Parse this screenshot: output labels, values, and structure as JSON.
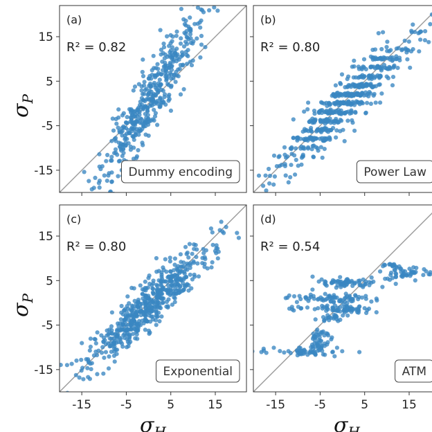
{
  "chart_data": [
    {
      "panel": "(a)",
      "type": "scatter",
      "xlabel": "",
      "ylabel": "σP",
      "annotation": "R² = 0.82",
      "legend": "Dummy encoding",
      "legend_placement": "bottom-right",
      "xlim": [
        -20,
        22
      ],
      "ylim": [
        -20,
        22
      ],
      "xticks": [
        "-15",
        "-5",
        "5",
        "15"
      ],
      "yticks": [
        "15",
        "5",
        "-5",
        "-15"
      ],
      "reference_line": "y = x",
      "color": "#3a87c2",
      "generator": {
        "seed": 11,
        "n": 460,
        "x_mean": 0.5,
        "x_sd": 5.6,
        "slope": 1.55,
        "intercept": 0.5,
        "noise": 3.8
      }
    },
    {
      "panel": "(b)",
      "type": "scatter",
      "xlabel": "",
      "ylabel": "",
      "annotation": "R² = 0.80",
      "legend": "Power Law",
      "legend_placement": "bottom-right",
      "xlim": [
        -20,
        22
      ],
      "ylim": [
        -20,
        22
      ],
      "xticks": [
        "-15",
        "-5",
        "5",
        "15"
      ],
      "yticks": [
        "15",
        "5",
        "-5",
        "-15"
      ],
      "reference_line": "y = x",
      "color": "#3a87c2",
      "generator": {
        "seed": 23,
        "n": 560,
        "x_mean": 0.0,
        "x_sd": 7.2,
        "slope": 0.92,
        "intercept": -0.5,
        "noise": 2.6,
        "stripes": 2.0
      }
    },
    {
      "panel": "(c)",
      "type": "scatter",
      "xlabel": "σH",
      "ylabel": "σP",
      "annotation": "R² = 0.80",
      "legend": "Exponential",
      "legend_placement": "bottom-right",
      "xlim": [
        -20,
        22
      ],
      "ylim": [
        -20,
        22
      ],
      "xticks": [
        "-15",
        "-5",
        "5",
        "15"
      ],
      "yticks": [
        "15",
        "5",
        "-5",
        "-15"
      ],
      "reference_line": "y = x",
      "color": "#3a87c2",
      "generator": {
        "seed": 37,
        "n": 580,
        "x_mean": 0.0,
        "x_sd": 7.0,
        "slope": 0.9,
        "intercept": -0.5,
        "noise": 2.6,
        "stripes": 1.0
      }
    },
    {
      "panel": "(d)",
      "type": "scatter",
      "xlabel": "σH",
      "ylabel": "",
      "annotation": "R² = 0.54",
      "legend": "ATM",
      "legend_placement": "bottom-right",
      "xlim": [
        -20,
        22
      ],
      "ylim": [
        -20,
        22
      ],
      "xticks": [
        "-15",
        "-5",
        "5",
        "15"
      ],
      "yticks": [
        "15",
        "5",
        "-5",
        "-15"
      ],
      "reference_line": "y = x",
      "color": "#3a87c2",
      "clusters": [
        {
          "seed": 41,
          "n": 70,
          "x_center": 1.5,
          "x_sd": 3.2,
          "y": 4.5,
          "y_sd": 0.5
        },
        {
          "seed": 42,
          "n": 55,
          "x_center": -1.0,
          "x_sd": 3.6,
          "y": 1.0,
          "y_sd": 0.5
        },
        {
          "seed": 43,
          "n": 60,
          "x_center": 0.5,
          "x_sd": 3.2,
          "y": -1.5,
          "y_sd": 0.5
        },
        {
          "seed": 44,
          "n": 22,
          "x_center": -2.0,
          "x_sd": 2.2,
          "y": -3.5,
          "y_sd": 0.5
        },
        {
          "seed": 45,
          "n": 28,
          "x_center": -5.0,
          "x_sd": 1.2,
          "y": -7.5,
          "y_sd": 0.6
        },
        {
          "seed": 46,
          "n": 14,
          "x_center": -5.5,
          "x_sd": 1.0,
          "y": -9.5,
          "y_sd": 0.4
        },
        {
          "seed": 47,
          "n": 50,
          "x_center": -7.0,
          "x_sd": 3.4,
          "y": -11.0,
          "y_sd": 0.5
        },
        {
          "seed": 48,
          "n": 48,
          "x_center": 15.0,
          "x_sd": 3.3,
          "y": 6.5,
          "y_sd": 0.8
        },
        {
          "seed": 49,
          "n": 14,
          "x_center": 11.0,
          "x_sd": 1.3,
          "y": 8.3,
          "y_sd": 0.3
        },
        {
          "seed": 50,
          "n": 8,
          "x_center": -11.0,
          "x_sd": 1.6,
          "y": 1.0,
          "y_sd": 0.4
        },
        {
          "seed": 51,
          "n": 8,
          "x_center": -10.5,
          "x_sd": 1.5,
          "y": -1.5,
          "y_sd": 0.4
        },
        {
          "seed": 52,
          "n": 8,
          "x_center": -6.5,
          "x_sd": 1.5,
          "y": 1.5,
          "y_sd": 0.8
        },
        {
          "seed": 53,
          "n": 4,
          "x_center": -18.5,
          "x_sd": 0.8,
          "y": -11.0,
          "y_sd": 0.3
        }
      ]
    }
  ]
}
